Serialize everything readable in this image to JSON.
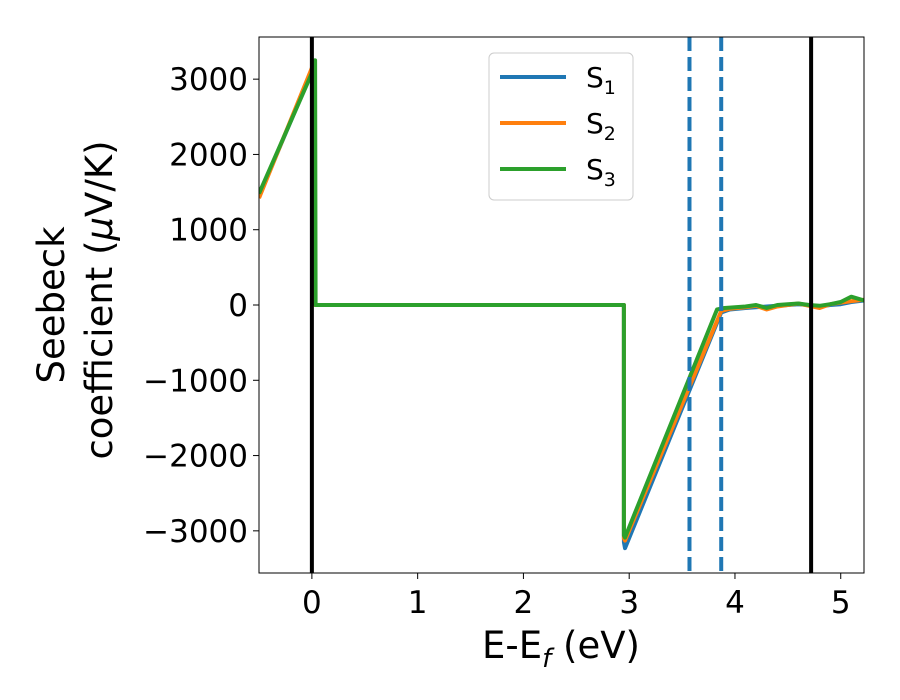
{
  "chart_data": {
    "type": "line",
    "xlabel_main": "E-E",
    "xlabel_sub": "f",
    "xlabel_unit": " (eV)",
    "ylabel_line1": "Seebeck",
    "ylabel_line2_a": "coefficient  (",
    "ylabel_line2_mu": "μ",
    "ylabel_line2_b": "V/K)",
    "xlim": [
      -0.5,
      5.22
    ],
    "ylim": [
      -3560,
      3560
    ],
    "xticks": [
      0,
      1,
      2,
      3,
      4,
      5
    ],
    "yticks": [
      -3000,
      -2000,
      -1000,
      0,
      1000,
      2000,
      3000
    ],
    "xtick_labels": [
      "0",
      "1",
      "2",
      "3",
      "4",
      "5"
    ],
    "ytick_labels": [
      "−3000",
      "−2000",
      "−1000",
      "0",
      "1000",
      "2000",
      "3000"
    ],
    "legend_position": "upper-center",
    "solid_vlines": [
      0.0,
      4.72
    ],
    "dashed_vlines": [
      3.57,
      3.87
    ],
    "vline_colors": {
      "solid": "#000000",
      "dashed": "#1f77b4"
    },
    "series": [
      {
        "name": "S",
        "sub": "1",
        "color": "#1f77b4",
        "x": [
          -0.5,
          0.0,
          0.02,
          0.03,
          2.95,
          2.95,
          2.96,
          3.87,
          3.95,
          4.1,
          4.2,
          4.3,
          4.4,
          4.5,
          4.6,
          4.7,
          4.8,
          4.9,
          5.0,
          5.1,
          5.22
        ],
        "y": [
          1450,
          3100,
          3100,
          0,
          0,
          -3150,
          -3230,
          -100,
          -60,
          -40,
          -30,
          -20,
          -10,
          0,
          10,
          0,
          -20,
          0,
          10,
          40,
          60
        ]
      },
      {
        "name": "S",
        "sub": "2",
        "color": "#ff7f0e",
        "x": [
          -0.5,
          0.0,
          0.02,
          0.03,
          2.95,
          2.95,
          2.96,
          3.87,
          3.95,
          4.1,
          4.2,
          4.3,
          4.4,
          4.5,
          4.6,
          4.7,
          4.8,
          4.9,
          5.0,
          5.1,
          5.22
        ],
        "y": [
          1420,
          3150,
          3150,
          0,
          0,
          -3100,
          -3130,
          -80,
          -50,
          -30,
          -10,
          -60,
          -20,
          0,
          20,
          -10,
          -40,
          10,
          30,
          50,
          70
        ]
      },
      {
        "name": "S",
        "sub": "3",
        "color": "#2ca02c",
        "x": [
          -0.5,
          0.0,
          0.03,
          0.035,
          2.95,
          2.95,
          2.96,
          3.83,
          3.9,
          4.0,
          4.1,
          4.2,
          4.3,
          4.4,
          4.5,
          4.6,
          4.7,
          4.8,
          4.9,
          5.0,
          5.1,
          5.22
        ],
        "y": [
          1480,
          3080,
          3250,
          0,
          0,
          -3060,
          -3090,
          -60,
          -40,
          -30,
          -20,
          0,
          -40,
          0,
          10,
          20,
          0,
          -10,
          10,
          40,
          110,
          60
        ]
      }
    ]
  }
}
